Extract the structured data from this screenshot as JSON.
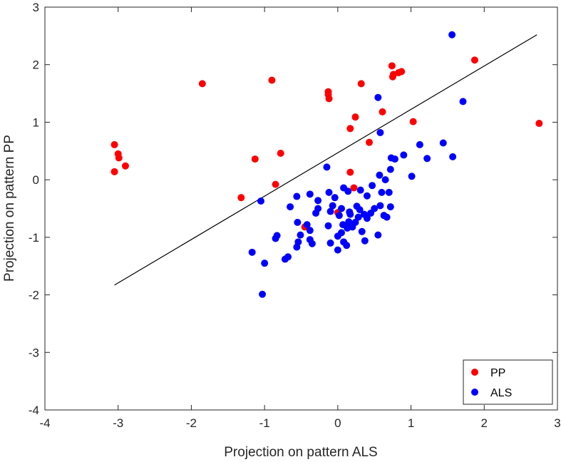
{
  "chart_data": {
    "type": "scatter",
    "xlabel": "Projection on pattern ALS",
    "ylabel": "Projection on pattern PP",
    "xlim": [
      -4,
      3
    ],
    "ylim": [
      -4,
      3
    ],
    "xticks": [
      "-4",
      "-3",
      "-2",
      "-1",
      "0",
      "1",
      "2",
      "3"
    ],
    "yticks": [
      "-4",
      "-3",
      "-2",
      "-1",
      "0",
      "1",
      "2",
      "3"
    ],
    "grid": false,
    "legend_position": "bottom-right",
    "line": {
      "x": [
        -3.05,
        2.72
      ],
      "y": [
        -1.83,
        2.52
      ],
      "color": "#000000"
    },
    "series": [
      {
        "name": "PP",
        "color": "#ff0000",
        "points": [
          [
            -3.05,
            0.61
          ],
          [
            -3.0,
            0.45
          ],
          [
            -2.99,
            0.38
          ],
          [
            -2.9,
            0.24
          ],
          [
            -3.05,
            0.14
          ],
          [
            -1.85,
            1.67
          ],
          [
            -0.9,
            1.73
          ],
          [
            -1.13,
            0.36
          ],
          [
            -0.78,
            0.46
          ],
          [
            -0.85,
            -0.08
          ],
          [
            -1.32,
            -0.31
          ],
          [
            -0.45,
            -0.82
          ],
          [
            -0.13,
            1.53
          ],
          [
            -0.13,
            1.48
          ],
          [
            -0.12,
            1.41
          ],
          [
            0.32,
            1.67
          ],
          [
            0.24,
            1.09
          ],
          [
            0.17,
            0.89
          ],
          [
            0.17,
            0.13
          ],
          [
            0.22,
            -0.14
          ],
          [
            0.0,
            -0.57
          ],
          [
            0.61,
            1.18
          ],
          [
            0.43,
            0.65
          ],
          [
            0.74,
            1.98
          ],
          [
            0.76,
            1.83
          ],
          [
            0.75,
            1.79
          ],
          [
            0.83,
            1.86
          ],
          [
            0.87,
            1.88
          ],
          [
            1.03,
            1.01
          ],
          [
            1.87,
            2.08
          ],
          [
            2.75,
            0.98
          ]
        ]
      },
      {
        "name": "ALS",
        "color": "#0000ff",
        "points": [
          [
            1.56,
            2.52
          ],
          [
            1.71,
            1.36
          ],
          [
            0.55,
            1.43
          ],
          [
            0.58,
            0.82
          ],
          [
            1.44,
            0.64
          ],
          [
            1.12,
            0.61
          ],
          [
            1.57,
            0.4
          ],
          [
            1.22,
            0.37
          ],
          [
            0.9,
            0.43
          ],
          [
            0.78,
            0.36
          ],
          [
            0.73,
            0.38
          ],
          [
            1.01,
            0.06
          ],
          [
            0.72,
            0.18
          ],
          [
            0.65,
            0.0
          ],
          [
            0.57,
            0.08
          ],
          [
            0.7,
            -0.22
          ],
          [
            0.6,
            -0.22
          ],
          [
            0.47,
            -0.1
          ],
          [
            0.4,
            -0.28
          ],
          [
            0.31,
            -0.18
          ],
          [
            0.14,
            -0.2
          ],
          [
            -0.15,
            0.22
          ],
          [
            -0.12,
            -0.22
          ],
          [
            -0.38,
            -0.25
          ],
          [
            -0.65,
            -0.47
          ],
          [
            -0.56,
            -0.29
          ],
          [
            -0.27,
            -0.36
          ],
          [
            -0.04,
            -0.31
          ],
          [
            0.08,
            -0.14
          ],
          [
            -0.07,
            -0.45
          ],
          [
            -0.27,
            -0.5
          ],
          [
            -1.05,
            -0.37
          ],
          [
            -0.1,
            -0.55
          ],
          [
            0.05,
            -0.5
          ],
          [
            0.16,
            -0.56
          ],
          [
            0.26,
            -0.46
          ],
          [
            0.3,
            -0.52
          ],
          [
            0.36,
            -0.6
          ],
          [
            0.45,
            -0.58
          ],
          [
            0.5,
            -0.5
          ],
          [
            0.58,
            -0.45
          ],
          [
            0.72,
            -0.47
          ],
          [
            0.63,
            -0.62
          ],
          [
            0.67,
            -0.65
          ],
          [
            0.17,
            -0.6
          ],
          [
            0.02,
            -0.62
          ],
          [
            0.28,
            -0.65
          ],
          [
            0.4,
            -0.67
          ],
          [
            0.15,
            -0.73
          ],
          [
            0.07,
            -0.78
          ],
          [
            -0.3,
            -0.58
          ],
          [
            -0.13,
            -0.8
          ],
          [
            -0.42,
            -0.78
          ],
          [
            -0.55,
            -0.74
          ],
          [
            0.24,
            -0.74
          ],
          [
            0.2,
            -0.82
          ],
          [
            0.13,
            -0.84
          ],
          [
            0.05,
            -0.92
          ],
          [
            0.0,
            -0.98
          ],
          [
            0.33,
            -0.9
          ],
          [
            0.55,
            -0.96
          ],
          [
            -0.38,
            -0.88
          ],
          [
            -0.51,
            -0.96
          ],
          [
            -0.83,
            -0.97
          ],
          [
            -0.85,
            -1.02
          ],
          [
            -0.38,
            -1.04
          ],
          [
            -0.54,
            -1.08
          ],
          [
            -0.35,
            -1.11
          ],
          [
            -0.1,
            -1.1
          ],
          [
            0.08,
            -1.08
          ],
          [
            0.12,
            -1.14
          ],
          [
            0.37,
            -1.06
          ],
          [
            -0.56,
            -1.17
          ],
          [
            -0.68,
            -1.34
          ],
          [
            -0.72,
            -1.38
          ],
          [
            -1.17,
            -1.26
          ],
          [
            -1.0,
            -1.45
          ],
          [
            -1.03,
            -1.99
          ],
          [
            0.0,
            -1.22
          ]
        ]
      }
    ]
  }
}
